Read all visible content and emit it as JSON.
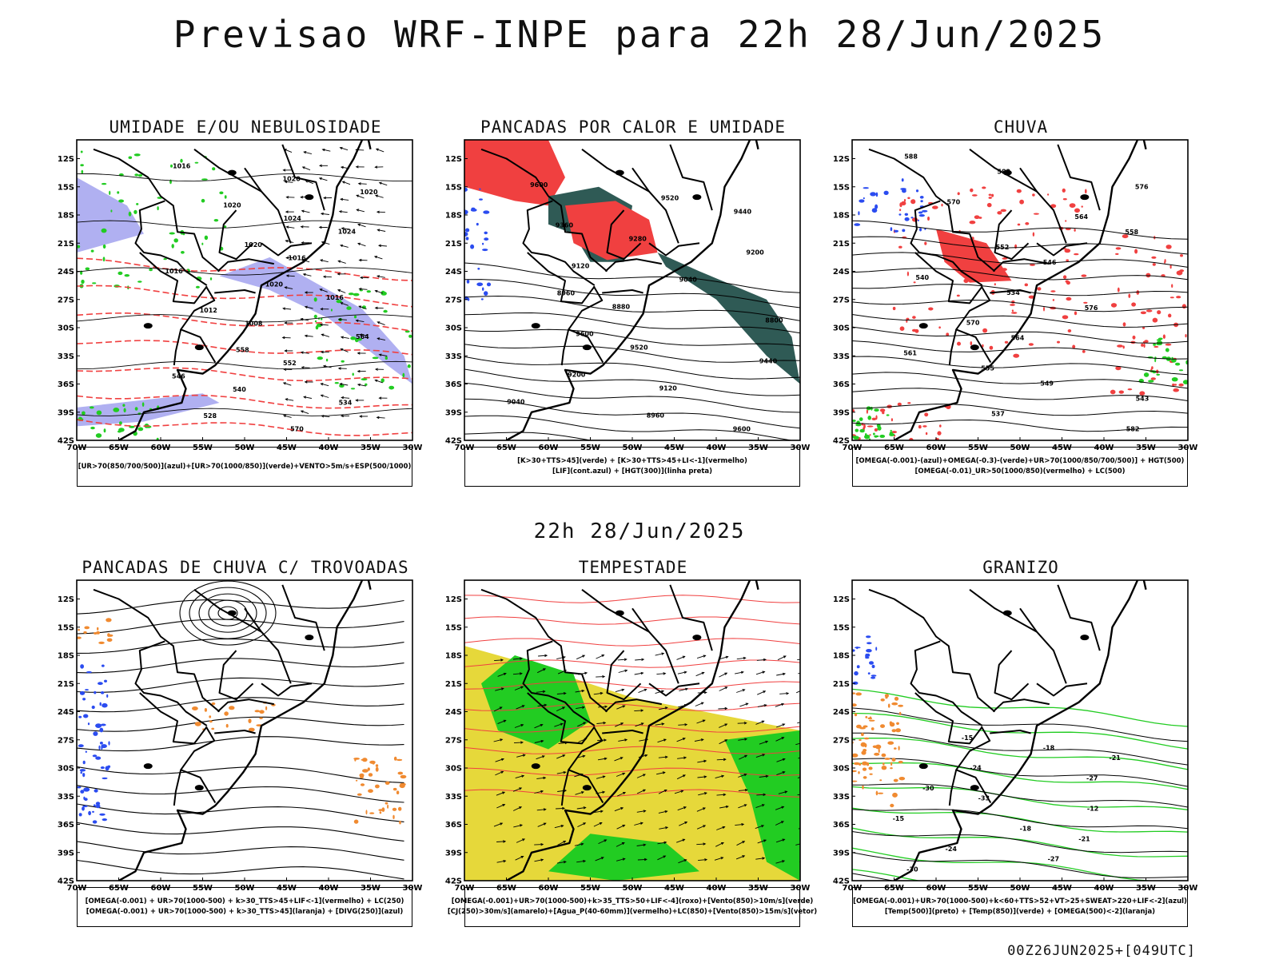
{
  "header": {
    "title": "Previsao WRF-INPE  para 22h 28/Jun/2025",
    "mid_date": "22h 28/Jun/2025",
    "run_info": "00Z26JUN2025+[049UTC]"
  },
  "axes": {
    "lat_labels": [
      "12S",
      "15S",
      "18S",
      "21S",
      "24S",
      "27S",
      "30S",
      "33S",
      "36S",
      "39S",
      "42S"
    ],
    "lon_labels": [
      "70W",
      "65W",
      "60W",
      "55W",
      "50W",
      "45W",
      "40W",
      "35W",
      "30W"
    ]
  },
  "colors": {
    "blue": "#2b4cf0",
    "green": "#22cc22",
    "red": "#f04040",
    "lightred": "#f86b6b",
    "dark_teal": "#2f5a55",
    "yellow": "#e6d83a",
    "orange": "#f08a30",
    "lavender": "#a7a7f0"
  },
  "panels": [
    {
      "id": "umidade",
      "title": "UMIDADE E/OU NEBULOSIDADE",
      "legend": [
        "[UR>70(850/700/500)](azul)+[UR>70(1000/850)](verde)+VENTO>5m/s+ESP(500/1000)"
      ],
      "contour_labels": [
        "1016",
        "1020",
        "1020",
        "1020",
        "1024",
        "1024",
        "1020",
        "1016",
        "1016",
        "1020",
        "1016",
        "1012",
        "1008",
        "564",
        "558",
        "552",
        "546",
        "540",
        "534",
        "528",
        "570"
      ]
    },
    {
      "id": "pancadas_calor",
      "title": "PANCADAS POR CALOR E UMIDADE",
      "legend": [
        "[K>30+TTS>45](verde) + [K>30+TTS>45+LI<-1](vermelho)",
        "[LIF](cont.azul) + [HGT(300)](linha preta)"
      ],
      "contour_labels": [
        "9600",
        "9520",
        "9440",
        "9360",
        "9280",
        "9200",
        "9120",
        "9040",
        "8960",
        "8880",
        "8800",
        "9600",
        "9520",
        "9440",
        "9200",
        "9120",
        "9040",
        "8960",
        "9600"
      ]
    },
    {
      "id": "chuva",
      "title": "CHUVA",
      "legend": [
        "[OMEGA(-0.001)-(azul)+OMEGA(-0.3)-(verde)+UR>70(1000/850/700/500)] + HGT(500)",
        "[OMEGA(-0.01)_UR>50(1000/850)(vermelho) + LC(500)"
      ],
      "contour_labels": [
        "588",
        "582",
        "576",
        "570",
        "564",
        "558",
        "552",
        "546",
        "540",
        "534",
        "576",
        "570",
        "564",
        "561",
        "555",
        "549",
        "543",
        "537",
        "582"
      ]
    },
    {
      "id": "trovoadas",
      "title": "PANCADAS DE CHUVA C/ TROVOADAS",
      "legend": [
        "[OMEGA(-0.001) + UR>70(1000-500) + k>30_TTS>45+LIF<-1](vermelho) + LC(250)",
        "[OMEGA(-0.001) + UR>70(1000-500) + k>30_TTS>45](laranja) + [DIVG(250)](azul)"
      ],
      "contour_labels": []
    },
    {
      "id": "tempestade",
      "title": "TEMPESTADE",
      "legend": [
        "[OMEGA(-0.001)+UR>70(1000-500)+k>35_TTS>50+LIF<-4](roxo)+[Vento(850)>10m/s](verde)",
        "[CJ(250)>30m/s](amarelo)+[Agua_P(40-60mm)](vermelho)+LC(850)+[Vento(850)>15m/s](vetor)"
      ],
      "contour_labels": []
    },
    {
      "id": "granizo",
      "title": "GRANIZO",
      "legend": [
        "[OMEGA(-0.001)+UR>70(1000-500)+k<60+TTS>52+VT>25+SWEAT>220+LIF<-2](azul)",
        "[Temp(500)](preto) + [Temp(850)](verde) + [OMEGA(500)<-2](laranja)"
      ],
      "contour_labels": [
        "-15",
        "-18",
        "-21",
        "-24",
        "-27",
        "-30",
        "-33",
        "-12",
        "-15",
        "-18",
        "-21",
        "-24",
        "-27",
        "-30"
      ]
    }
  ]
}
